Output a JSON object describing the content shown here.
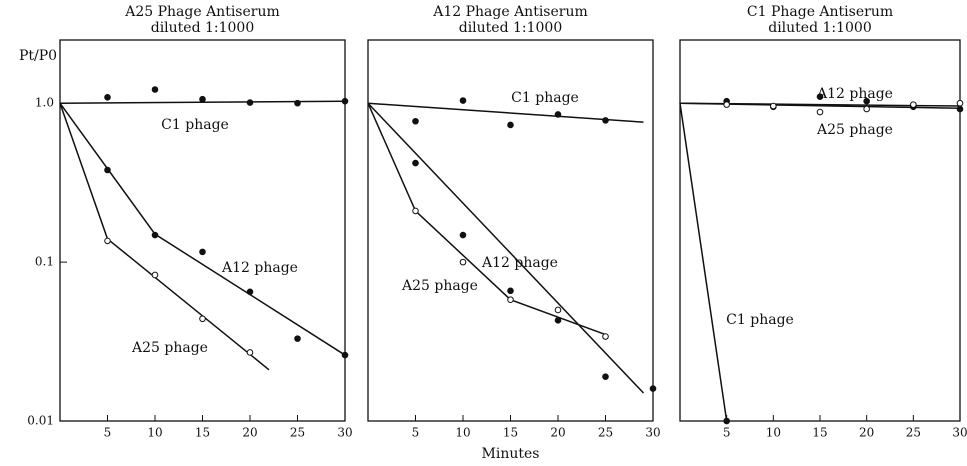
{
  "chart_data": [
    {
      "type": "scatter",
      "title": "A25 Phage Antiserum",
      "subtitle": "diluted 1:1000",
      "ylabel": "Pt/P0",
      "log_y": true,
      "xlim": [
        0,
        30
      ],
      "ylim": [
        0.01,
        2.5
      ],
      "xticks": [
        5,
        10,
        15,
        20,
        25,
        30
      ],
      "yticks": [
        0.01,
        0.1,
        {
          "value": 1,
          "label": "1.0"
        }
      ],
      "series": [
        {
          "name": "C1 phage",
          "marker": "filled",
          "x": [
            5,
            10,
            15,
            20,
            25,
            30
          ],
          "values": [
            1.09,
            1.22,
            1.06,
            1.01,
            1.0,
            1.03
          ],
          "fit_x": [
            0,
            30
          ],
          "fit_y": [
            1.0,
            1.03
          ]
        },
        {
          "name": "A12 phage",
          "marker": "filled",
          "x": [
            5,
            10,
            15,
            20,
            25,
            30
          ],
          "values": [
            0.38,
            0.148,
            0.116,
            0.065,
            0.033,
            0.026
          ],
          "fit_x": [
            0,
            10,
            30
          ],
          "fit_y": [
            1.0,
            0.15,
            0.026
          ]
        },
        {
          "name": "A25 phage",
          "marker": "open",
          "x": [
            5,
            10,
            15,
            20
          ],
          "values": [
            0.136,
            0.083,
            0.044,
            0.027
          ],
          "fit_x": [
            0,
            5,
            22
          ],
          "fit_y": [
            1.0,
            0.14,
            0.021
          ]
        }
      ]
    },
    {
      "type": "scatter",
      "title": "A12 Phage Antiserum",
      "subtitle": "diluted 1:1000",
      "xlabel": "Minutes",
      "log_y": true,
      "xlim": [
        0,
        30
      ],
      "ylim": [
        0.01,
        2.5
      ],
      "xticks": [
        5,
        10,
        15,
        20,
        25,
        30
      ],
      "series": [
        {
          "name": "C1 phage",
          "marker": "filled",
          "x": [
            5,
            10,
            15,
            20,
            25
          ],
          "values": [
            0.77,
            1.04,
            0.73,
            0.85,
            0.78
          ],
          "fit_x": [
            0,
            29
          ],
          "fit_y": [
            1.0,
            0.76
          ]
        },
        {
          "name": "A12 phage",
          "marker": "filled",
          "x": [
            5,
            10,
            15,
            20,
            25,
            30
          ],
          "values": [
            0.42,
            0.148,
            0.066,
            0.043,
            0.019,
            0.016
          ],
          "fit_x": [
            0,
            29
          ],
          "fit_y": [
            1.0,
            0.015
          ]
        },
        {
          "name": "A25 phage",
          "marker": "open",
          "x": [
            5,
            10,
            15,
            20,
            25
          ],
          "values": [
            0.21,
            0.1,
            0.058,
            0.05,
            0.034
          ],
          "fit_x": [
            0,
            5,
            15,
            25
          ],
          "fit_y": [
            1.0,
            0.21,
            0.058,
            0.035
          ]
        }
      ]
    },
    {
      "type": "scatter",
      "title": "C1 Phage Antiserum",
      "subtitle": "diluted 1:1000",
      "log_y": true,
      "xlim": [
        0,
        30
      ],
      "ylim": [
        0.01,
        2.5
      ],
      "xticks": [
        5,
        10,
        15,
        20,
        25,
        30
      ],
      "series": [
        {
          "name": "A12 phage",
          "marker": "filled",
          "x": [
            5,
            10,
            15,
            20,
            25,
            30
          ],
          "values": [
            1.03,
            0.95,
            1.1,
            1.03,
            0.95,
            0.92
          ],
          "fit_x": [
            0,
            30
          ],
          "fit_y": [
            1.0,
            0.93
          ]
        },
        {
          "name": "A25 phage",
          "marker": "open",
          "x": [
            5,
            10,
            15,
            20,
            25,
            30
          ],
          "values": [
            0.98,
            0.96,
            0.88,
            0.92,
            0.98,
            1.0
          ],
          "fit_x": [
            0,
            30
          ],
          "fit_y": [
            1.0,
            0.96
          ]
        },
        {
          "name": "C1 phage",
          "marker": "filled",
          "x": [
            5
          ],
          "values": [
            0.01
          ],
          "fit_x": [
            0,
            5
          ],
          "fit_y": [
            1.0,
            0.01
          ]
        }
      ]
    }
  ]
}
